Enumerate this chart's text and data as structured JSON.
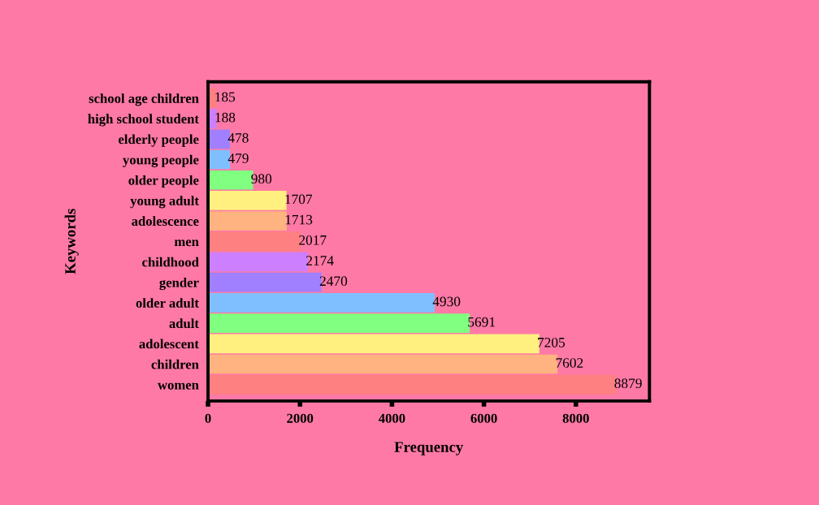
{
  "chart_data": {
    "type": "bar",
    "orientation": "horizontal",
    "categories": [
      "school age children",
      "high school student",
      "elderly people",
      "young people",
      "older people",
      "young adult",
      "adolescence",
      "men",
      "childhood",
      "gender",
      "older adult",
      "adult",
      "adolescent",
      "children",
      "women"
    ],
    "values": [
      185,
      188,
      478,
      479,
      980,
      1707,
      1713,
      2017,
      2174,
      2470,
      4930,
      5691,
      7205,
      7602,
      8879
    ],
    "colors": [
      "#ff8080",
      "#cc80ff",
      "#a080ff",
      "#80bfff",
      "#80ff80",
      "#fff080",
      "#ffb380",
      "#ff8080",
      "#cc80ff",
      "#a080ff",
      "#80bfff",
      "#80ff80",
      "#fff080",
      "#ffb380",
      "#ff8080"
    ],
    "xlabel": "Frequency",
    "ylabel": "Keywords",
    "xlim": [
      0,
      9600
    ],
    "xticks": [
      0,
      2000,
      4000,
      6000,
      8000
    ],
    "data_labels": true,
    "grid": false,
    "legend": false
  }
}
